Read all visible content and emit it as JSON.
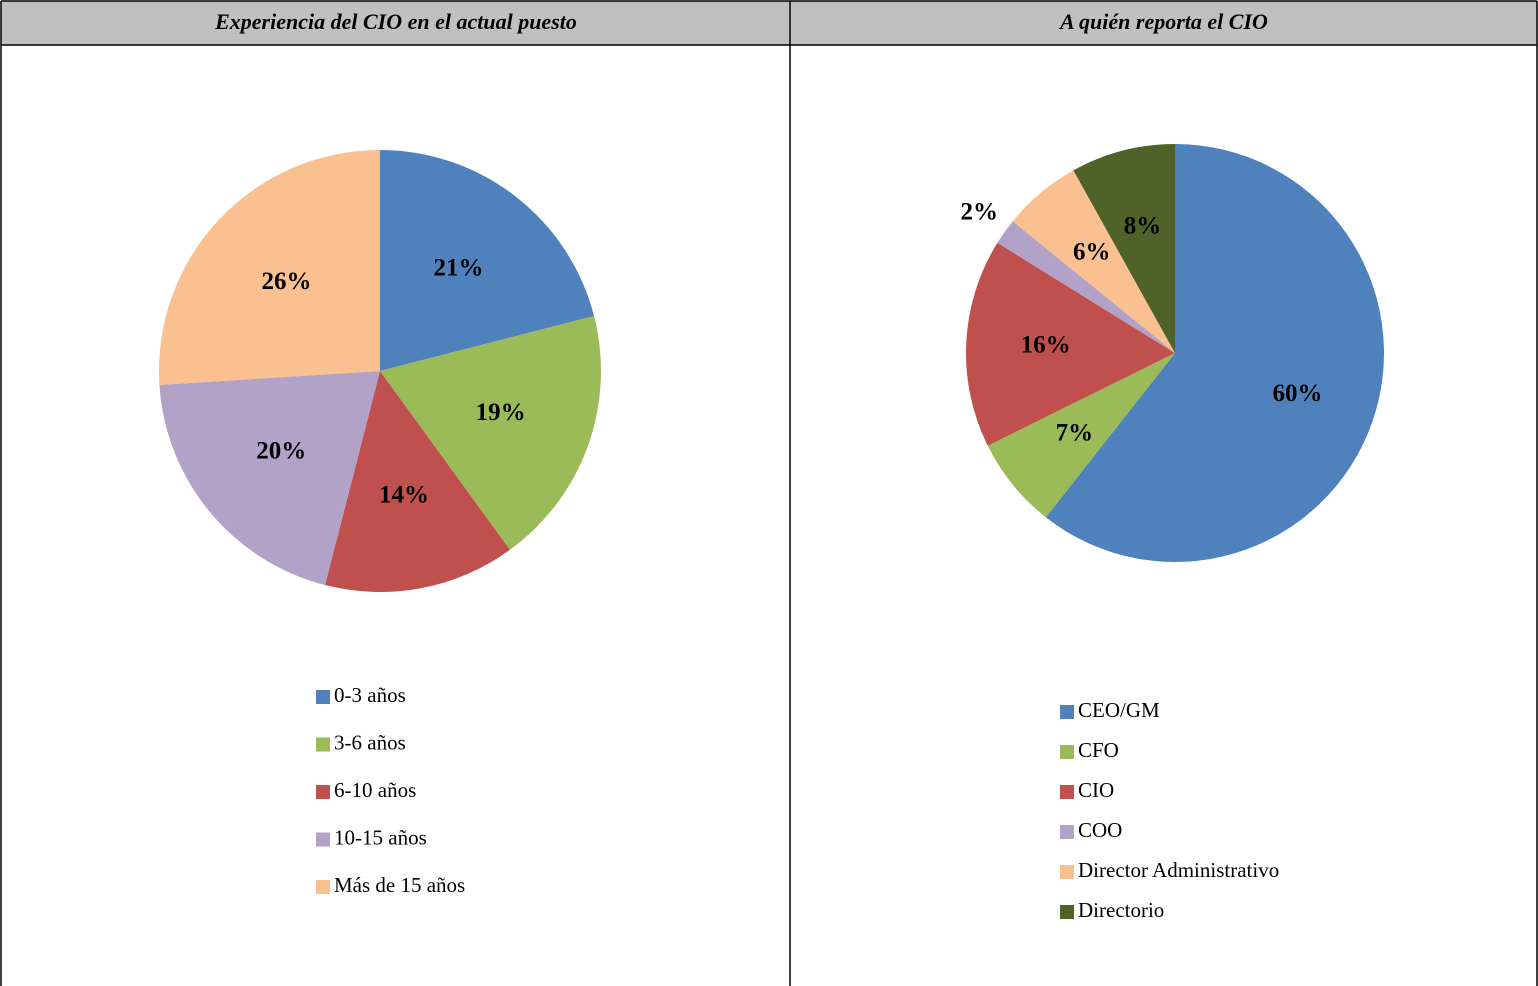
{
  "chart_data": [
    {
      "type": "pie",
      "title": "Experiencia del CIO en el actual puesto",
      "categories": [
        "0-3 años",
        "3-6 años",
        "6-10 años",
        "10-15 años",
        "Más de 15 años"
      ],
      "values": [
        21,
        19,
        14,
        20,
        26
      ],
      "value_labels": [
        "21%",
        "19%",
        "14%",
        "20%",
        "26%"
      ],
      "colors": [
        "#4f81bd",
        "#9bbb59",
        "#c0504d",
        "#b3a2c7",
        "#fac090"
      ]
    },
    {
      "type": "pie",
      "title": "A quién reporta el CIO",
      "categories": [
        "CEO/GM",
        "CFO",
        "CIO",
        "COO",
        "Director Administrativo",
        "Directorio"
      ],
      "values": [
        60,
        7,
        16,
        2,
        6,
        8
      ],
      "value_labels": [
        "60%",
        "7%",
        "16%",
        "2%",
        "6%",
        "8%"
      ],
      "colors": [
        "#4f81bd",
        "#9bbb59",
        "#c0504d",
        "#b3a2c7",
        "#fac090",
        "#4f6228"
      ]
    }
  ]
}
